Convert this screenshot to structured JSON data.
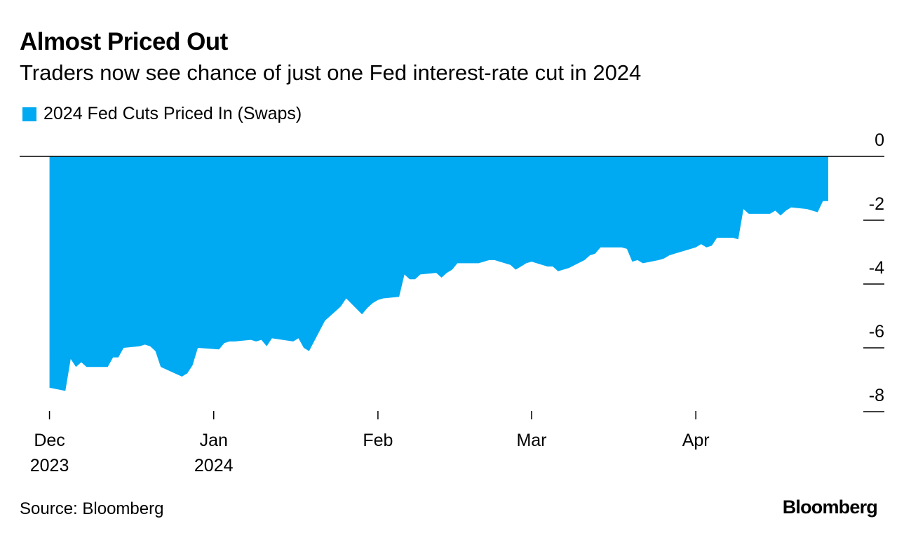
{
  "title": "Almost Priced Out",
  "subtitle": "Traders now see chance of just one Fed interest-rate cut in 2024",
  "source": "Source: Bloomberg",
  "brand": "Bloomberg",
  "colors": {
    "series": "#00aaf2",
    "axis": "#000000"
  },
  "chart_data": {
    "type": "area",
    "title": "Almost Priced Out",
    "subtitle": "Traders now see chance of just one Fed interest-rate cut in 2024",
    "xlabel": "",
    "ylabel": "",
    "ylim": [
      -8,
      0
    ],
    "xlim": [
      "2023-11-30",
      "2024-04-26"
    ],
    "grid": false,
    "legend_position": "top-left",
    "y_axis_side": "right",
    "y_ticks": [
      0,
      -2,
      -4,
      -6,
      -8
    ],
    "x_ticks": [
      {
        "date": "2023-12-01",
        "label": [
          "Dec",
          "2023"
        ]
      },
      {
        "date": "2024-01-01",
        "label": [
          "Jan",
          "2024"
        ]
      },
      {
        "date": "2024-02-01",
        "label": [
          "Feb",
          ""
        ]
      },
      {
        "date": "2024-03-01",
        "label": [
          "Mar",
          ""
        ]
      },
      {
        "date": "2024-04-01",
        "label": [
          "Apr",
          ""
        ]
      }
    ],
    "series": [
      {
        "name": "2024 Fed Cuts Priced In (Swaps)",
        "color": "#00aaf2",
        "points": [
          [
            "2023-12-01",
            -7.25
          ],
          [
            "2023-12-04",
            -7.35
          ],
          [
            "2023-12-05",
            -6.35
          ],
          [
            "2023-12-06",
            -6.6
          ],
          [
            "2023-12-07",
            -6.45
          ],
          [
            "2023-12-08",
            -6.6
          ],
          [
            "2023-12-11",
            -6.6
          ],
          [
            "2023-12-12",
            -6.6
          ],
          [
            "2023-12-13",
            -6.3
          ],
          [
            "2023-12-14",
            -6.3
          ],
          [
            "2023-12-15",
            -6.0
          ],
          [
            "2023-12-18",
            -5.95
          ],
          [
            "2023-12-19",
            -5.9
          ],
          [
            "2023-12-20",
            -5.95
          ],
          [
            "2023-12-21",
            -6.1
          ],
          [
            "2023-12-22",
            -6.6
          ],
          [
            "2023-12-26",
            -6.9
          ],
          [
            "2023-12-27",
            -6.8
          ],
          [
            "2023-12-28",
            -6.55
          ],
          [
            "2023-12-29",
            -6.0
          ],
          [
            "2024-01-02",
            -6.05
          ],
          [
            "2024-01-03",
            -5.85
          ],
          [
            "2024-01-04",
            -5.8
          ],
          [
            "2024-01-05",
            -5.8
          ],
          [
            "2024-01-08",
            -5.75
          ],
          [
            "2024-01-09",
            -5.8
          ],
          [
            "2024-01-10",
            -5.75
          ],
          [
            "2024-01-11",
            -5.95
          ],
          [
            "2024-01-12",
            -5.7
          ],
          [
            "2024-01-16",
            -5.8
          ],
          [
            "2024-01-17",
            -5.7
          ],
          [
            "2024-01-18",
            -6.0
          ],
          [
            "2024-01-19",
            -6.1
          ],
          [
            "2024-01-22",
            -5.15
          ],
          [
            "2024-01-23",
            -5.0
          ],
          [
            "2024-01-24",
            -4.85
          ],
          [
            "2024-01-25",
            -4.7
          ],
          [
            "2024-01-26",
            -4.45
          ],
          [
            "2024-01-29",
            -4.95
          ],
          [
            "2024-01-30",
            -4.75
          ],
          [
            "2024-01-31",
            -4.6
          ],
          [
            "2024-02-01",
            -4.5
          ],
          [
            "2024-02-02",
            -4.45
          ],
          [
            "2024-02-05",
            -4.4
          ],
          [
            "2024-02-06",
            -3.7
          ],
          [
            "2024-02-07",
            -3.85
          ],
          [
            "2024-02-08",
            -3.85
          ],
          [
            "2024-02-09",
            -3.7
          ],
          [
            "2024-02-12",
            -3.65
          ],
          [
            "2024-02-13",
            -3.8
          ],
          [
            "2024-02-14",
            -3.65
          ],
          [
            "2024-02-15",
            -3.55
          ],
          [
            "2024-02-16",
            -3.35
          ],
          [
            "2024-02-20",
            -3.35
          ],
          [
            "2024-02-21",
            -3.3
          ],
          [
            "2024-02-22",
            -3.25
          ],
          [
            "2024-02-23",
            -3.25
          ],
          [
            "2024-02-26",
            -3.4
          ],
          [
            "2024-02-27",
            -3.55
          ],
          [
            "2024-02-28",
            -3.45
          ],
          [
            "2024-02-29",
            -3.35
          ],
          [
            "2024-03-01",
            -3.3
          ],
          [
            "2024-03-04",
            -3.45
          ],
          [
            "2024-03-05",
            -3.45
          ],
          [
            "2024-03-06",
            -3.6
          ],
          [
            "2024-03-07",
            -3.55
          ],
          [
            "2024-03-08",
            -3.5
          ],
          [
            "2024-03-11",
            -3.25
          ],
          [
            "2024-03-12",
            -3.1
          ],
          [
            "2024-03-13",
            -3.05
          ],
          [
            "2024-03-14",
            -2.85
          ],
          [
            "2024-03-15",
            -2.85
          ],
          [
            "2024-03-18",
            -2.85
          ],
          [
            "2024-03-19",
            -2.9
          ],
          [
            "2024-03-20",
            -3.3
          ],
          [
            "2024-03-21",
            -3.25
          ],
          [
            "2024-03-22",
            -3.35
          ],
          [
            "2024-03-25",
            -3.25
          ],
          [
            "2024-03-26",
            -3.2
          ],
          [
            "2024-03-27",
            -3.1
          ],
          [
            "2024-03-28",
            -3.05
          ],
          [
            "2024-04-01",
            -2.85
          ],
          [
            "2024-04-02",
            -2.75
          ],
          [
            "2024-04-03",
            -2.85
          ],
          [
            "2024-04-04",
            -2.8
          ],
          [
            "2024-04-05",
            -2.55
          ],
          [
            "2024-04-08",
            -2.55
          ],
          [
            "2024-04-09",
            -2.6
          ],
          [
            "2024-04-10",
            -1.65
          ],
          [
            "2024-04-11",
            -1.8
          ],
          [
            "2024-04-12",
            -1.8
          ],
          [
            "2024-04-15",
            -1.8
          ],
          [
            "2024-04-16",
            -1.7
          ],
          [
            "2024-04-17",
            -1.85
          ],
          [
            "2024-04-18",
            -1.7
          ],
          [
            "2024-04-19",
            -1.6
          ],
          [
            "2024-04-22",
            -1.65
          ],
          [
            "2024-04-23",
            -1.7
          ],
          [
            "2024-04-24",
            -1.75
          ],
          [
            "2024-04-25",
            -1.4
          ],
          [
            "2024-04-26",
            -1.4
          ]
        ]
      }
    ]
  }
}
